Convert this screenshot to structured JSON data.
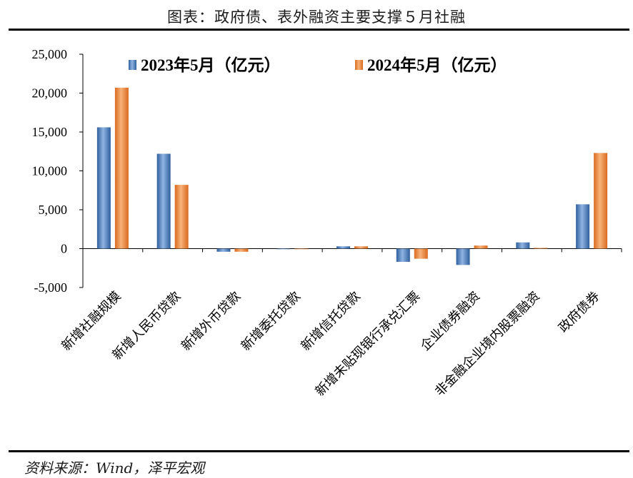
{
  "title": "图表：政府债、表外融资主要支撑５月社融",
  "source": "资料来源：Wind，泽平宏观",
  "chart_data": {
    "type": "bar",
    "categories": [
      "新增社融规模",
      "新增人民币贷款",
      "新增外币贷款",
      "新增委托贷款",
      "新增信托贷款",
      "新增未贴现银行承兑汇票",
      "企业债券融资",
      "非金融企业境内股票融资",
      "政府债券"
    ],
    "series": [
      {
        "name": "2023年5月（亿元）",
        "values": [
          15600,
          12200,
          -400,
          -30,
          300,
          -1700,
          -2100,
          800,
          5700
        ],
        "color": "#4a7ebf"
      },
      {
        "name": "2024年5月（亿元）",
        "values": [
          20700,
          8200,
          -400,
          -30,
          300,
          -1300,
          400,
          100,
          12300
        ],
        "color": "#e8833a"
      }
    ],
    "yticks": [
      "-5,000",
      "0",
      "5,000",
      "10,000",
      "15,000",
      "20,000",
      "25,000"
    ],
    "ylim": [
      -5000,
      25000
    ],
    "grid": false,
    "legend_position": "top"
  }
}
